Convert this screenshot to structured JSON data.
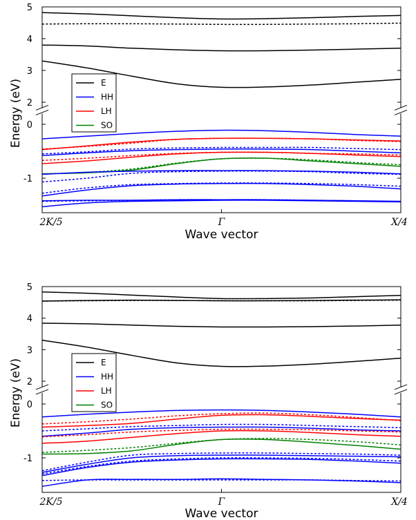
{
  "chart_data": [
    {
      "type": "line",
      "xlabel": "Wave vector",
      "ylabel": "Energy (eV)",
      "xticks": [
        "2K/5",
        "Γ",
        "X/4"
      ],
      "x": [
        -1.0,
        -0.75,
        -0.5,
        -0.25,
        0.0,
        0.25,
        0.5,
        0.75,
        1.0
      ],
      "y_axis": {
        "broken": true,
        "lower_range": [
          -1.6,
          0.15
        ],
        "upper_range": [
          1.9,
          5.0
        ],
        "ticks": [
          "5",
          "4",
          "3",
          "2",
          "0",
          "-1"
        ]
      },
      "legend": {
        "position": "upper-left",
        "entries": [
          {
            "label": "E",
            "color": "#000000"
          },
          {
            "label": "HH",
            "color": "#0000ff"
          },
          {
            "label": "LH",
            "color": "#ff0000"
          },
          {
            "label": "SO",
            "color": "#008000"
          }
        ]
      },
      "series": [
        {
          "band": "E",
          "style": "solid",
          "values": [
            4.82,
            4.78,
            4.72,
            4.66,
            4.62,
            4.63,
            4.66,
            4.7,
            4.73
          ]
        },
        {
          "band": "E",
          "style": "dotted",
          "values": [
            4.46,
            4.47,
            4.47,
            4.46,
            4.45,
            4.45,
            4.46,
            4.47,
            4.49
          ]
        },
        {
          "band": "E",
          "style": "solid",
          "values": [
            3.8,
            3.77,
            3.7,
            3.65,
            3.62,
            3.62,
            3.64,
            3.67,
            3.7
          ]
        },
        {
          "band": "E",
          "style": "solid",
          "values": [
            3.3,
            3.08,
            2.82,
            2.58,
            2.47,
            2.48,
            2.54,
            2.63,
            2.72
          ]
        },
        {
          "band": "HH",
          "style": "solid",
          "values": [
            -0.27,
            -0.22,
            -0.17,
            -0.13,
            -0.11,
            -0.12,
            -0.15,
            -0.19,
            -0.22
          ]
        },
        {
          "band": "LH",
          "style": "solid",
          "values": [
            -0.47,
            -0.4,
            -0.33,
            -0.28,
            -0.26,
            -0.26,
            -0.27,
            -0.29,
            -0.31
          ]
        },
        {
          "band": "LH",
          "style": "dotted",
          "values": [
            -0.46,
            -0.41,
            -0.35,
            -0.28,
            -0.26,
            -0.26,
            -0.27,
            -0.3,
            -0.32
          ]
        },
        {
          "band": "HH",
          "style": "dotted",
          "values": [
            -0.55,
            -0.51,
            -0.46,
            -0.44,
            -0.43,
            -0.43,
            -0.43,
            -0.45,
            -0.47
          ]
        },
        {
          "band": "HH",
          "style": "solid",
          "values": [
            -0.58,
            -0.53,
            -0.49,
            -0.47,
            -0.46,
            -0.46,
            -0.47,
            -0.5,
            -0.53
          ]
        },
        {
          "band": "LH",
          "style": "solid",
          "values": [
            -0.73,
            -0.68,
            -0.61,
            -0.55,
            -0.52,
            -0.52,
            -0.54,
            -0.57,
            -0.6
          ]
        },
        {
          "band": "LH",
          "style": "dotted",
          "values": [
            -0.67,
            -0.63,
            -0.58,
            -0.54,
            -0.52,
            -0.52,
            -0.54,
            -0.55,
            -0.57
          ]
        },
        {
          "band": "SO",
          "style": "solid",
          "values": [
            -0.92,
            -0.9,
            -0.85,
            -0.73,
            -0.64,
            -0.63,
            -0.68,
            -0.73,
            -0.78
          ]
        },
        {
          "band": "SO",
          "style": "dotted",
          "values": [
            -0.92,
            -0.89,
            -0.83,
            -0.72,
            -0.64,
            -0.63,
            -0.66,
            -0.71,
            -0.75
          ]
        },
        {
          "band": "HH",
          "style": "solid",
          "values": [
            -0.93,
            -0.89,
            -0.87,
            -0.86,
            -0.86,
            -0.86,
            -0.87,
            -0.89,
            -0.92
          ]
        },
        {
          "band": "HH",
          "style": "dotted",
          "values": [
            -1.07,
            -1.0,
            -0.91,
            -0.88,
            -0.87,
            -0.87,
            -0.88,
            -0.91,
            -0.93
          ]
        },
        {
          "band": "HH",
          "style": "solid",
          "values": [
            -1.33,
            -1.22,
            -1.14,
            -1.11,
            -1.1,
            -1.1,
            -1.12,
            -1.15,
            -1.2
          ]
        },
        {
          "band": "HH",
          "style": "dotted",
          "values": [
            -1.28,
            -1.18,
            -1.12,
            -1.1,
            -1.09,
            -1.09,
            -1.1,
            -1.12,
            -1.15
          ]
        },
        {
          "band": "HH",
          "style": "solid",
          "values": [
            -1.42,
            -1.41,
            -1.41,
            -1.4,
            -1.4,
            -1.4,
            -1.41,
            -1.42,
            -1.43
          ]
        },
        {
          "band": "HH",
          "style": "dotted",
          "values": [
            -1.43,
            -1.42,
            -1.41,
            -1.4,
            -1.4,
            -1.4,
            -1.41,
            -1.42,
            -1.44
          ]
        },
        {
          "band": "HH",
          "style": "solid",
          "values": [
            -1.53,
            -1.46,
            -1.43,
            -1.42,
            -1.41,
            -1.41,
            -1.42,
            -1.43,
            -1.44
          ]
        }
      ]
    },
    {
      "type": "line",
      "xlabel": "Wave vector",
      "ylabel": "Energy (eV)",
      "xticks": [
        "2K/5",
        "Γ",
        "X/4"
      ],
      "x": [
        -1.0,
        -0.75,
        -0.5,
        -0.25,
        0.0,
        0.25,
        0.5,
        0.75,
        1.0
      ],
      "y_axis": {
        "broken": true,
        "lower_range": [
          -1.6,
          0.15
        ],
        "upper_range": [
          1.9,
          5.0
        ],
        "ticks": [
          "5",
          "4",
          "3",
          "2",
          "0",
          "-1"
        ]
      },
      "legend": {
        "position": "upper-left",
        "entries": [
          {
            "label": "E",
            "color": "#000000"
          },
          {
            "label": "HH",
            "color": "#0000ff"
          },
          {
            "label": "LH",
            "color": "#ff0000"
          },
          {
            "label": "SO",
            "color": "#008000"
          }
        ]
      },
      "series": [
        {
          "band": "E",
          "style": "solid",
          "values": [
            4.83,
            4.79,
            4.73,
            4.67,
            4.62,
            4.62,
            4.64,
            4.68,
            4.72
          ]
        },
        {
          "band": "E",
          "style": "solid",
          "values": [
            4.54,
            4.56,
            4.57,
            4.56,
            4.55,
            4.55,
            4.56,
            4.57,
            4.58
          ]
        },
        {
          "band": "E",
          "style": "dotted",
          "values": [
            4.54,
            4.55,
            4.56,
            4.56,
            4.55,
            4.55,
            4.55,
            4.56,
            4.57
          ]
        },
        {
          "band": "E",
          "style": "solid",
          "values": [
            3.84,
            3.82,
            3.78,
            3.74,
            3.72,
            3.72,
            3.73,
            3.75,
            3.78
          ]
        },
        {
          "band": "E",
          "style": "solid",
          "values": [
            3.3,
            3.08,
            2.82,
            2.58,
            2.47,
            2.48,
            2.54,
            2.63,
            2.73
          ]
        },
        {
          "band": "HH",
          "style": "solid",
          "values": [
            -0.24,
            -0.19,
            -0.15,
            -0.12,
            -0.11,
            -0.12,
            -0.15,
            -0.19,
            -0.24
          ]
        },
        {
          "band": "LH",
          "style": "dotted",
          "values": [
            -0.37,
            -0.33,
            -0.28,
            -0.22,
            -0.18,
            -0.17,
            -0.2,
            -0.25,
            -0.31
          ]
        },
        {
          "band": "LH",
          "style": "solid",
          "values": [
            -0.43,
            -0.4,
            -0.36,
            -0.28,
            -0.21,
            -0.2,
            -0.23,
            -0.27,
            -0.3
          ]
        },
        {
          "band": "HH",
          "style": "dotted",
          "values": [
            -0.5,
            -0.46,
            -0.42,
            -0.4,
            -0.38,
            -0.38,
            -0.4,
            -0.42,
            -0.44
          ]
        },
        {
          "band": "HH",
          "style": "solid",
          "values": [
            -0.6,
            -0.54,
            -0.47,
            -0.44,
            -0.43,
            -0.43,
            -0.45,
            -0.48,
            -0.5
          ]
        },
        {
          "band": "LH",
          "style": "dotted",
          "values": [
            -0.61,
            -0.57,
            -0.52,
            -0.49,
            -0.47,
            -0.47,
            -0.48,
            -0.5,
            -0.52
          ]
        },
        {
          "band": "LH",
          "style": "solid",
          "values": [
            -0.73,
            -0.69,
            -0.62,
            -0.55,
            -0.5,
            -0.5,
            -0.53,
            -0.57,
            -0.6
          ]
        },
        {
          "band": "SO",
          "style": "dotted",
          "values": [
            -0.9,
            -0.86,
            -0.81,
            -0.73,
            -0.66,
            -0.64,
            -0.66,
            -0.7,
            -0.76
          ]
        },
        {
          "band": "SO",
          "style": "solid",
          "values": [
            -0.93,
            -0.92,
            -0.87,
            -0.75,
            -0.66,
            -0.66,
            -0.71,
            -0.77,
            -0.84
          ]
        },
        {
          "band": "HH",
          "style": "dotted",
          "values": [
            -1.24,
            -1.08,
            -0.95,
            -0.92,
            -0.91,
            -0.91,
            -0.92,
            -0.93,
            -0.95
          ]
        },
        {
          "band": "HH",
          "style": "solid",
          "values": [
            -1.27,
            -1.12,
            -1.0,
            -0.96,
            -0.95,
            -0.95,
            -0.96,
            -0.97,
            -0.98
          ]
        },
        {
          "band": "HH",
          "style": "dotted",
          "values": [
            -1.3,
            -1.16,
            -1.06,
            -1.02,
            -1.0,
            -1.0,
            -1.01,
            -1.03,
            -1.06
          ]
        },
        {
          "band": "HH",
          "style": "solid",
          "values": [
            -1.33,
            -1.18,
            -1.08,
            -1.04,
            -1.02,
            -1.02,
            -1.03,
            -1.06,
            -1.1
          ]
        },
        {
          "band": "HH",
          "style": "dotted",
          "values": [
            -1.42,
            -1.41,
            -1.41,
            -1.41,
            -1.41,
            -1.41,
            -1.41,
            -1.42,
            -1.43
          ]
        },
        {
          "band": "HH",
          "style": "solid",
          "values": [
            -1.53,
            -1.41,
            -1.4,
            -1.4,
            -1.39,
            -1.4,
            -1.41,
            -1.43,
            -1.46
          ]
        }
      ]
    }
  ]
}
